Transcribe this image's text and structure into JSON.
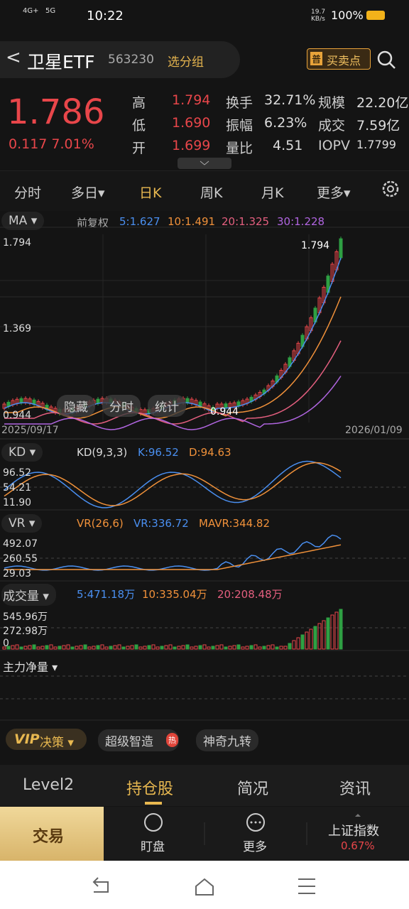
{
  "status": {
    "net1": "4G+",
    "net2": "5G",
    "time": "10:22",
    "speed": "19.7 KB/s",
    "battery": "100%"
  },
  "header": {
    "back": "<",
    "name": "卫星ETF",
    "code": "563230",
    "group": "选分组",
    "badge": "普",
    "signal": "买卖点"
  },
  "quote": {
    "price": "1.786",
    "change": "0.117 7.01%",
    "stats": [
      [
        "高",
        "1.794",
        "换手",
        "32.71%",
        "规模",
        "22.20亿"
      ],
      [
        "低",
        "1.690",
        "振幅",
        "6.23%",
        "成交",
        "7.59亿"
      ],
      [
        "开",
        "1.699",
        "量比",
        "4.51",
        "IOPV",
        "1.7799"
      ]
    ]
  },
  "tabs": [
    "分时",
    "多日▾",
    "日K",
    "周K",
    "月K",
    "更多▾"
  ],
  "ma": {
    "label": "MA ▾",
    "mode": "前复权",
    "items": [
      "5:1.627",
      "10:1.491",
      "20:1.325",
      "30:1.228"
    ],
    "axis": [
      "1.794",
      "1.369",
      "0.944"
    ],
    "high_note": "1.794",
    "low_note": "0.944",
    "buttons": [
      "隐藏",
      "分时",
      "统计"
    ],
    "start": "2025/09/17",
    "end": "2026/01/09"
  },
  "kd": {
    "label": "KD ▾",
    "params": "KD(9,3,3)",
    "k": "K:96.52",
    "d": "D:94.63",
    "axis": [
      "96.52",
      "54.21",
      "11.90"
    ]
  },
  "vr": {
    "label": "VR ▾",
    "params": "VR(26,6)",
    "vr": "VR:336.72",
    "mavr": "MAVR:344.82",
    "axis": [
      "492.07",
      "260.55",
      "29.03"
    ]
  },
  "vol": {
    "label": "成交量 ▾",
    "items": [
      "5:471.18万",
      "10:335.04万",
      "20:208.48万"
    ],
    "axis": [
      "545.96万",
      "272.98万",
      "0"
    ]
  },
  "flow": {
    "label": "主力净量 ▾"
  },
  "tools": {
    "vip": "VIP",
    "decision": "决策 ▾",
    "smart": "超级智造",
    "hot": "热",
    "nine": "神奇九转"
  },
  "bottom_tabs": [
    "Level2",
    "持仓股",
    "简况",
    "资讯"
  ],
  "actions": {
    "trade": "交易",
    "watch": "盯盘",
    "more": "更多",
    "index": "上证指数",
    "index_change": "0.67%"
  }
}
